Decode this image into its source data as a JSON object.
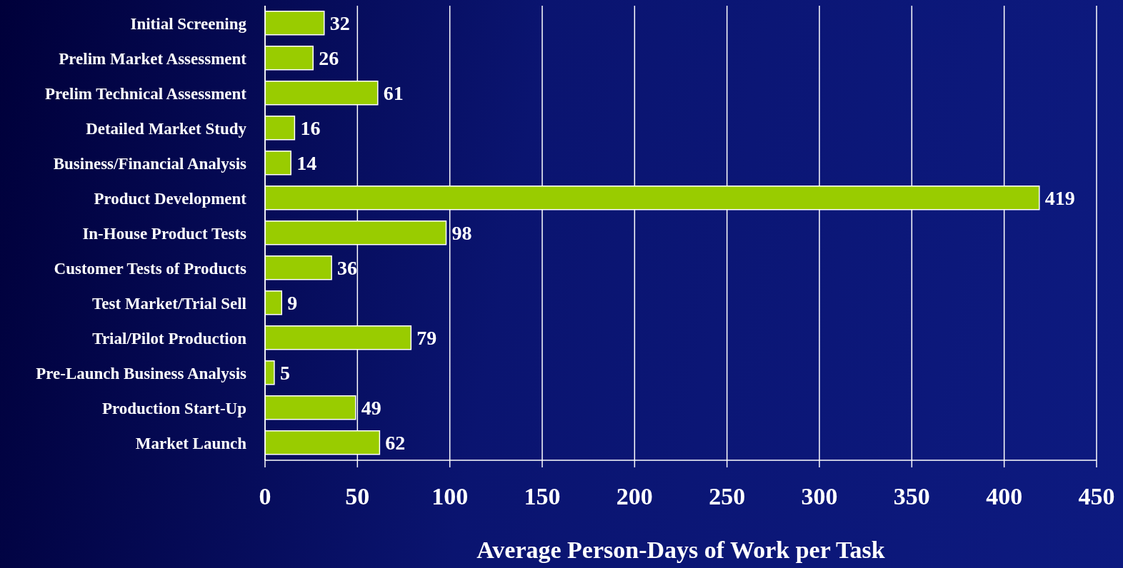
{
  "chart_data": {
    "type": "bar",
    "orientation": "horizontal",
    "xlabel": "Average Person-Days of Work per Task",
    "categories": [
      "Initial Screening",
      "Prelim Market Assessment",
      "Prelim Technical Assessment",
      "Detailed Market Study",
      "Business/Financial Analysis",
      "Product Development",
      "In-House Product Tests",
      "Customer Tests of Products",
      "Test Market/Trial Sell",
      "Trial/Pilot Production",
      "Pre-Launch Business Analysis",
      "Production Start-Up",
      "Market Launch"
    ],
    "values": [
      32,
      26,
      61,
      16,
      14,
      419,
      98,
      36,
      9,
      79,
      5,
      49,
      62
    ],
    "color": "#99cc00",
    "data_labels": true,
    "xlim": [
      0,
      450
    ],
    "xticks": [
      0,
      50,
      100,
      150,
      200,
      250,
      300,
      350,
      400,
      450
    ],
    "grid": "x"
  }
}
